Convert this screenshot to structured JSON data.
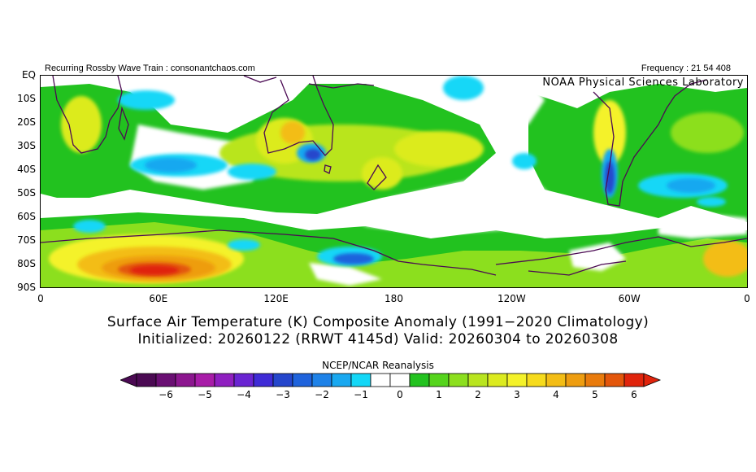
{
  "header": {
    "left_text": "Recurring Rossby Wave Train : consonantchaos.com",
    "right_text": "Frequency : 21 54 408"
  },
  "map": {
    "watermark": "NOAA Physical Sciences Laboratory",
    "lat_labels": [
      "EQ",
      "10S",
      "20S",
      "30S",
      "40S",
      "50S",
      "60S",
      "70S",
      "80S",
      "90S"
    ],
    "lon_labels": [
      "0",
      "60E",
      "120E",
      "180",
      "120W",
      "60W",
      "0"
    ],
    "projection": "cylindrical equidistant, 0 to 360 longitude, EQ to 90S",
    "field": "Surface Air Temperature anomaly (K)"
  },
  "titles": {
    "line1": "Surface Air Temperature (K) Composite Anomaly (1991−2020 Climatology)",
    "line2": "Initialized: 20260122 (RRWT 4145d) Valid: 20260304 to 20260308"
  },
  "colorbar": {
    "source": "NCEP/NCAR Reanalysis",
    "tick_labels": [
      "−6",
      "−5",
      "−4",
      "−3",
      "−2",
      "−1",
      "0",
      "1",
      "2",
      "3",
      "4",
      "5",
      "6"
    ],
    "colors": [
      "#4b0a53",
      "#6a0f73",
      "#8c168f",
      "#a81ca8",
      "#8f1fc0",
      "#6a24d2",
      "#3f2bd6",
      "#2546cc",
      "#1f63dc",
      "#1e82e8",
      "#19a8f0",
      "#13d7f7",
      "#ffffff",
      "#ffffff",
      "#22c21f",
      "#55d41c",
      "#8cdf1e",
      "#b9e51f",
      "#dceb1f",
      "#f4f22a",
      "#f6db1c",
      "#f3bd15",
      "#ee9d10",
      "#e97b0c",
      "#e3560b",
      "#e0240c"
    ],
    "min": -6.5,
    "max": 6.5,
    "step": 0.5
  }
}
